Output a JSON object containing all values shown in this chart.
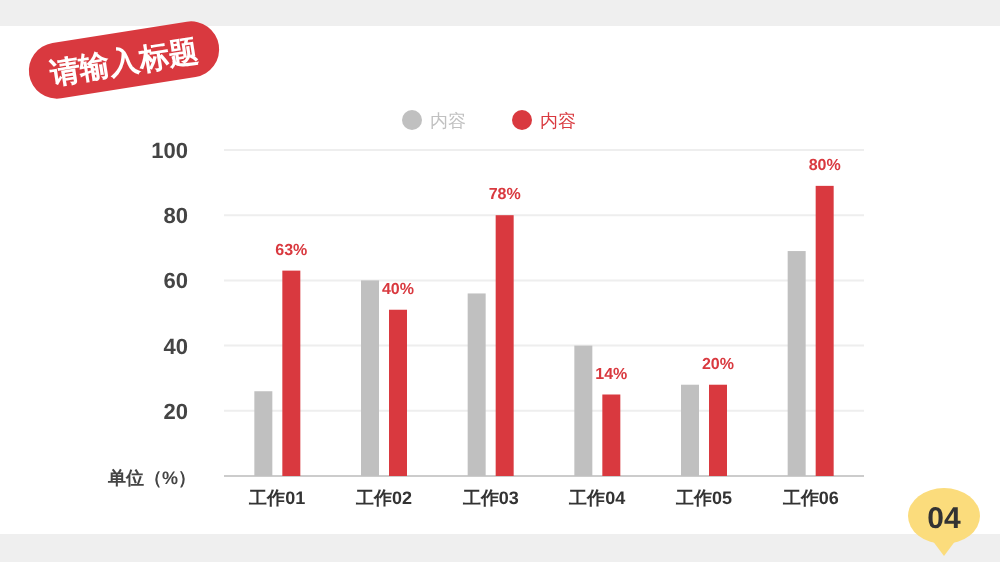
{
  "chart_data": {
    "type": "bar",
    "title": "请输入标题",
    "ylabel": "单位（%）",
    "categories": [
      "工作01",
      "工作02",
      "工作03",
      "工作04",
      "工作05",
      "工作06"
    ],
    "series": [
      {
        "name": "内容",
        "color": "#c0c0c0",
        "values": [
          26,
          60,
          56,
          40,
          28,
          69
        ]
      },
      {
        "name": "内容",
        "color": "#d9393f",
        "values": [
          63,
          51,
          80,
          25,
          28,
          89
        ]
      }
    ],
    "ylim": [
      0,
      100
    ],
    "yticks": [
      {
        "value": 0,
        "label": null
      },
      20,
      40,
      60,
      80,
      100
    ],
    "grid": "y",
    "legend": "top",
    "annotations": [
      {
        "text": "63%",
        "x": "工作01",
        "y": 63
      },
      {
        "text": "40%",
        "x": "工作02",
        "y": 51
      },
      {
        "text": "78%",
        "x": "工作03",
        "y": 80
      },
      {
        "text": "14%",
        "x": "工作04",
        "y": 25
      },
      {
        "text": "20%",
        "x": "工作05",
        "y": 28
      },
      {
        "text": "80%",
        "x": "工作06",
        "y": 89
      },
      "04"
    ]
  }
}
